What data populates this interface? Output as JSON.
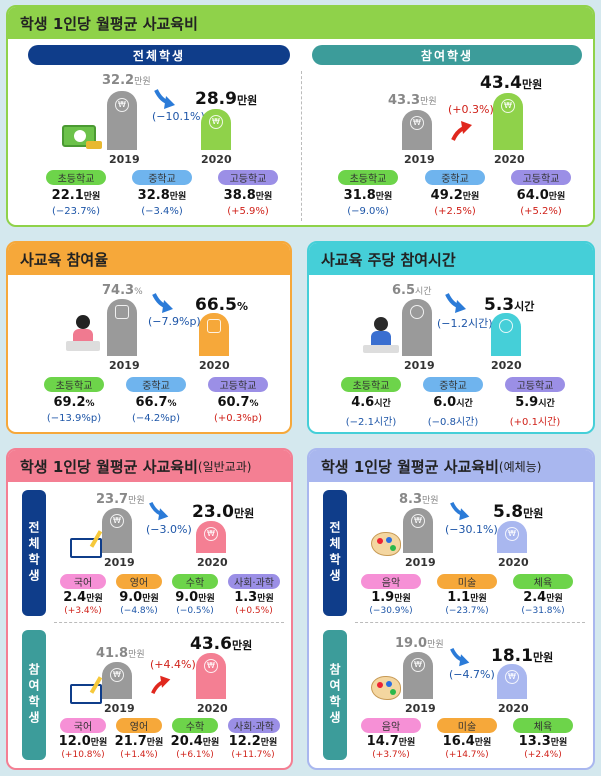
{
  "p1": {
    "title": "학생 1인당 월평균 사교육비",
    "left_label": "전체학생",
    "right_label": "참여학생",
    "left": {
      "y1": "2019",
      "y2": "2020",
      "v1": "32.2",
      "v2": "28.9",
      "unit": "만원",
      "chg": "(−10.1%)"
    },
    "right": {
      "y1": "2019",
      "y2": "2020",
      "v1": "43.3",
      "v2": "43.4",
      "unit": "만원",
      "chg": "(+0.3%)"
    },
    "tags": [
      "초등학교",
      "중학교",
      "고등학교"
    ],
    "left_sub": [
      {
        "v": "22.1",
        "u": "만원",
        "c": "(−23.7%)"
      },
      {
        "v": "32.8",
        "u": "만원",
        "c": "(−3.4%)"
      },
      {
        "v": "38.8",
        "u": "만원",
        "c": "(+5.9%)"
      }
    ],
    "right_sub": [
      {
        "v": "31.8",
        "u": "만원",
        "c": "(−9.0%)"
      },
      {
        "v": "49.2",
        "u": "만원",
        "c": "(+2.5%)"
      },
      {
        "v": "64.0",
        "u": "만원",
        "c": "(+5.2%)"
      }
    ]
  },
  "p2": {
    "title": "사교육 참여율",
    "y1": "2019",
    "y2": "2020",
    "v1": "74.3",
    "v2": "66.5",
    "unit": "%",
    "chg": "(−7.9%p)",
    "tags": [
      "초등학교",
      "중학교",
      "고등학교"
    ],
    "sub": [
      {
        "v": "69.2",
        "u": "%",
        "c": "(−13.9%p)"
      },
      {
        "v": "66.7",
        "u": "%",
        "c": "(−4.2%p)"
      },
      {
        "v": "60.7",
        "u": "%",
        "c": "(+0.3%p)"
      }
    ]
  },
  "p3": {
    "title": "사교육 주당 참여시간",
    "y1": "2019",
    "y2": "2020",
    "v1": "6.5",
    "v2": "5.3",
    "unit": "시간",
    "chg": "(−1.2시간)",
    "tags": [
      "초등학교",
      "중학교",
      "고등학교"
    ],
    "sub": [
      {
        "v": "4.6",
        "u": "시간",
        "c": "(−2.1시간)"
      },
      {
        "v": "6.0",
        "u": "시간",
        "c": "(−0.8시간)"
      },
      {
        "v": "5.9",
        "u": "시간",
        "c": "(+0.1시간)"
      }
    ]
  },
  "p4": {
    "title": "학생 1인당 월평균 사교육비",
    "title_sub": "(일반교과)",
    "side_top": "전체학생",
    "side_bot": "참여학생",
    "top": {
      "y1": "2019",
      "y2": "2020",
      "v1": "23.7",
      "v2": "23.0",
      "unit": "만원",
      "chg": "(−3.0%)"
    },
    "bot": {
      "y1": "2019",
      "y2": "2020",
      "v1": "41.8",
      "v2": "43.6",
      "unit": "만원",
      "chg": "(+4.4%)"
    },
    "tags": [
      "국어",
      "영어",
      "수학",
      "사회·과학"
    ],
    "top_sub": [
      {
        "v": "2.4",
        "u": "만원",
        "c": "(+3.4%)"
      },
      {
        "v": "9.0",
        "u": "만원",
        "c": "(−4.8%)"
      },
      {
        "v": "9.0",
        "u": "만원",
        "c": "(−0.5%)"
      },
      {
        "v": "1.3",
        "u": "만원",
        "c": "(+0.5%)"
      }
    ],
    "bot_sub": [
      {
        "v": "12.0",
        "u": "만원",
        "c": "(+10.8%)"
      },
      {
        "v": "21.7",
        "u": "만원",
        "c": "(+1.4%)"
      },
      {
        "v": "20.4",
        "u": "만원",
        "c": "(+6.1%)"
      },
      {
        "v": "12.2",
        "u": "만원",
        "c": "(+11.7%)"
      }
    ]
  },
  "p5": {
    "title": "학생 1인당 월평균 사교육비",
    "title_sub": "(예체능)",
    "side_top": "전체학생",
    "side_bot": "참여학생",
    "top": {
      "y1": "2019",
      "y2": "2020",
      "v1": "8.3",
      "v2": "5.8",
      "unit": "만원",
      "chg": "(−30.1%)"
    },
    "bot": {
      "y1": "2019",
      "y2": "2020",
      "v1": "19.0",
      "v2": "18.1",
      "unit": "만원",
      "chg": "(−4.7%)"
    },
    "tags": [
      "음악",
      "미술",
      "체육"
    ],
    "top_sub": [
      {
        "v": "1.9",
        "u": "만원",
        "c": "(−30.9%)"
      },
      {
        "v": "1.1",
        "u": "만원",
        "c": "(−23.7%)"
      },
      {
        "v": "2.4",
        "u": "만원",
        "c": "(−31.8%)"
      }
    ],
    "bot_sub": [
      {
        "v": "14.7",
        "u": "만원",
        "c": "(+3.7%)"
      },
      {
        "v": "16.4",
        "u": "만원",
        "c": "(+14.7%)"
      },
      {
        "v": "13.3",
        "u": "만원",
        "c": "(+2.4%)"
      }
    ]
  },
  "icons": {
    "coin": "₩"
  },
  "colors": {
    "green": "#8fd24a",
    "orange": "#f6a83a",
    "cyan": "#45cfd8",
    "pink": "#f47f93",
    "lavender": "#a9b7ef",
    "navy": "#0f3d8a",
    "teal": "#3c9c9a"
  }
}
